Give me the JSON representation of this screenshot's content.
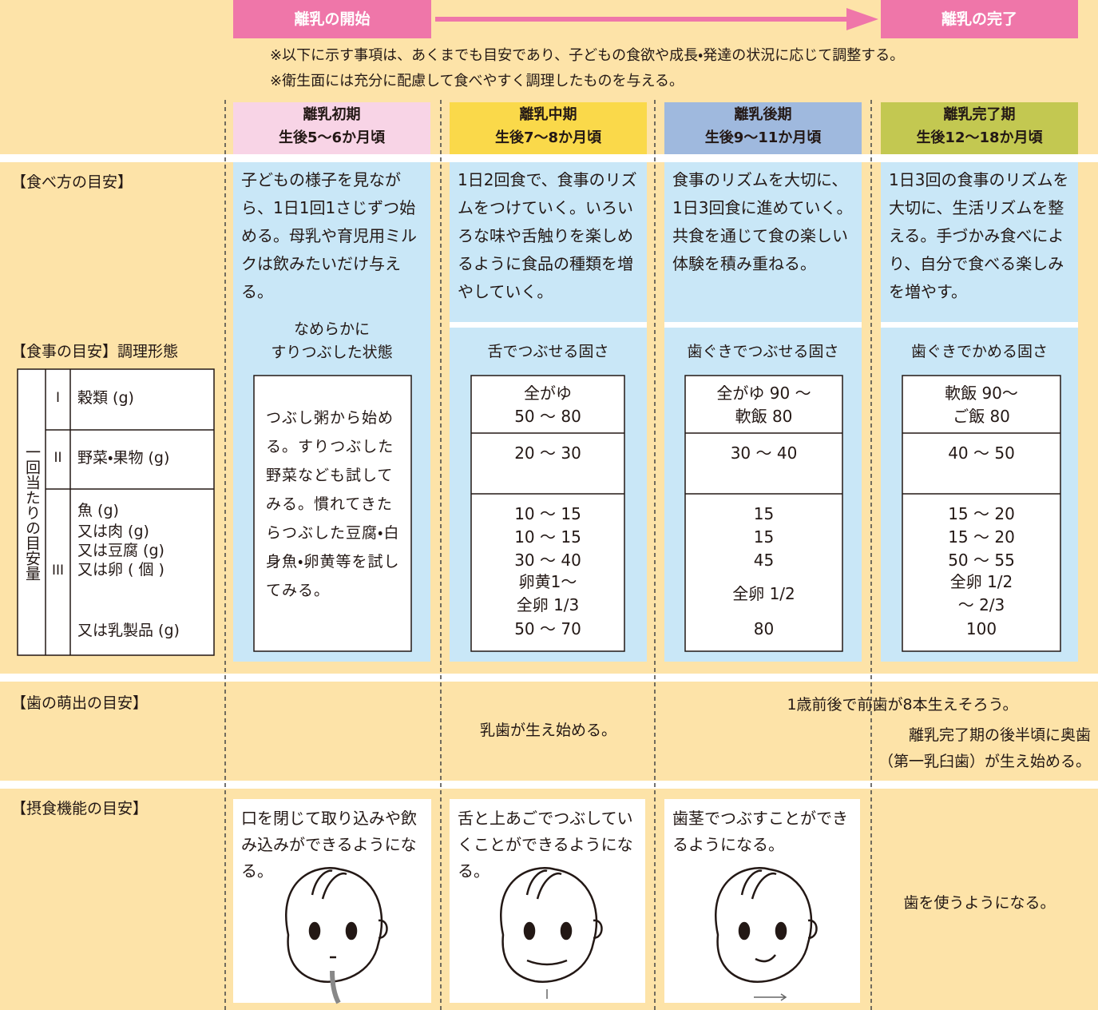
{
  "header": {
    "start": "離乳の開始",
    "end": "離乳の完了",
    "notes": [
      "※以下に示す事項は、あくまでも目安であり、子どもの食欲や成長・発達の状況に応じて調整する。",
      "※衛生面には充分に配慮して食べやすく調理したものを与える。"
    ]
  },
  "stages": [
    {
      "name": "離乳初期",
      "age": "生後5～6か月頃"
    },
    {
      "name": "離乳中期",
      "age": "生後7～8か月頃"
    },
    {
      "name": "離乳後期",
      "age": "生後9～11か月頃"
    },
    {
      "name": "離乳完了期",
      "age": "生後12～18か月頃"
    }
  ],
  "eating": {
    "label": "【食べ方の目安】",
    "texts": [
      "子どもの様子を見ながら、1日1回1さじずつ始める。母乳や育児用ミルクは飲みたいだけ与える。",
      "1日2回食で、食事のリズムをつけていく。いろいろな味や舌触りを楽しめるように食品の種類を増やしていく。",
      "食事のリズムを大切に、1日3回食に進めていく。共食を通じて食の楽しい体験を積み重ねる。",
      "1日3回の食事のリズムを大切に、生活リズムを整える。手づかみ食べにより、自分で食べる楽しみを増やす。"
    ]
  },
  "meal": {
    "label": "【食事の目安】調理形態",
    "forms": [
      "なめらかに\nすりつぶした状態",
      "舌でつぶせる固さ",
      "歯ぐきでつぶせる固さ",
      "歯ぐきでかめる固さ"
    ],
    "amount_label": "一回当たりの目安量",
    "groups": [
      {
        "num": "I",
        "items": [
          "穀類 (g)"
        ]
      },
      {
        "num": "II",
        "items": [
          "野菜・果物 (g)"
        ]
      },
      {
        "num": "III",
        "items": [
          "魚 (g)",
          "又は肉 (g)",
          "又は豆腐 (g)",
          "又は卵 ( 個 )",
          "又は乳製品 (g)"
        ]
      }
    ],
    "early_text": "つぶし粥から始める。すりつぶした野菜なども試してみる。慣れてきたらつぶした豆腐・白身魚・卵黄等を試してみる。",
    "amounts": [
      {
        "grain": "全がゆ\n50 ～ 80",
        "vegetable": "20 ～ 30",
        "protein": [
          "10 ～ 15",
          "10 ～ 15",
          "30 ～ 40",
          "卵黄1～\n全卵 1/3",
          "50 ～ 70"
        ]
      },
      {
        "grain": "全がゆ 90 ～\n軟飯 80",
        "vegetable": "30 ～ 40",
        "protein": [
          "15",
          "15",
          "45",
          "全卵 1/2",
          "80"
        ]
      },
      {
        "grain": "軟飯 90～\nご飯 80",
        "vegetable": "40 ～ 50",
        "protein": [
          "15 ～ 20",
          "15 ～ 20",
          "50 ～ 55",
          "全卵 1/2\n～ 2/3",
          "100"
        ]
      }
    ]
  },
  "teeth": {
    "label": "【歯の萌出の目安】",
    "middle": "乳歯が生え始める。",
    "front": "1歳前後で前歯が8本生えそろう。",
    "molar": "離乳完了期の後半頃に奥歯\n（第一乳臼歯）が生え始める。"
  },
  "function": {
    "label": "【摂食機能の目安】",
    "texts": [
      "口を閉じて取り込みや飲み込みができるようになる。",
      "舌と上あごでつぶしていくことができるようになる。",
      "歯茎でつぶすことができるようになる。",
      "歯を使うようになる。"
    ]
  }
}
